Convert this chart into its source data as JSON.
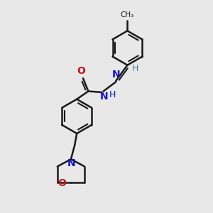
{
  "bg_color": "#e8e8e8",
  "bond_color": "#1a1a1a",
  "bond_width": 1.8,
  "N_color": "#1010cc",
  "O_color": "#cc1010",
  "H_color": "#3a8a8a",
  "C_color": "#1a1a1a",
  "figsize": [
    3.0,
    3.0
  ],
  "dpi": 100,
  "xlim": [
    0,
    10
  ],
  "ylim": [
    0,
    10
  ]
}
